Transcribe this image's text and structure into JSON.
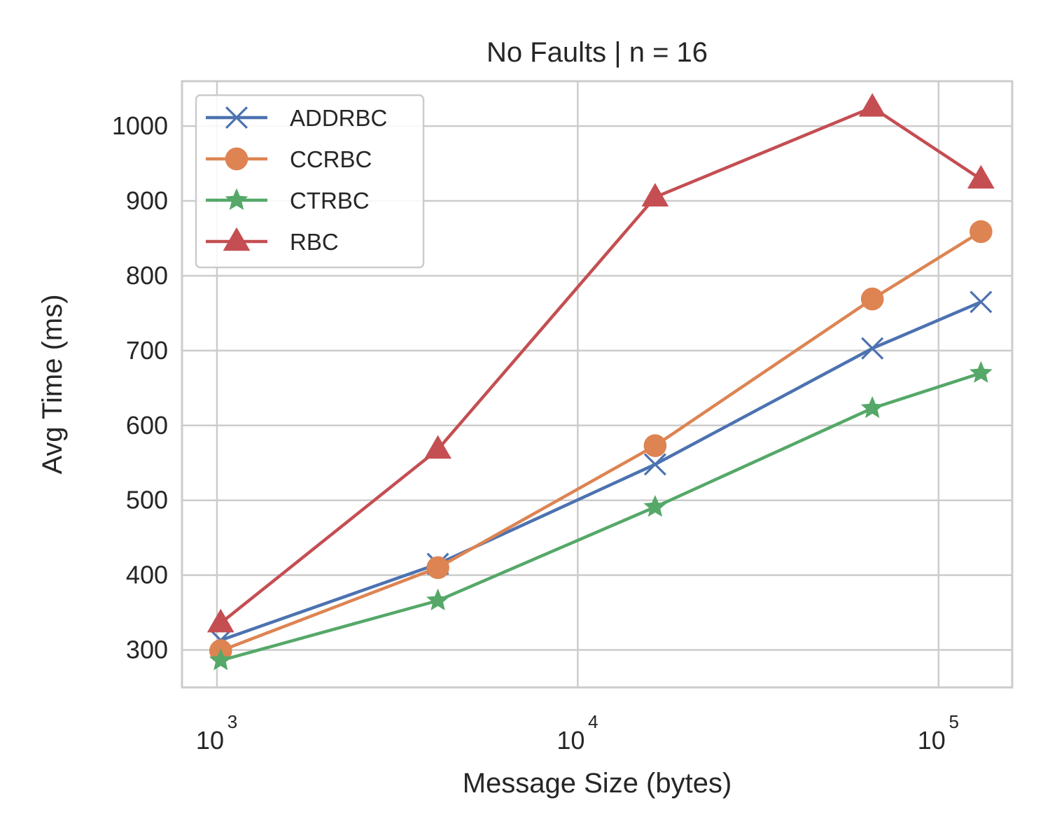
{
  "chart_data": {
    "type": "line",
    "title": "No Faults | n = 16",
    "xlabel": "Message Size (bytes)",
    "ylabel": "Avg Time (ms)",
    "x_scale": "log",
    "xlim": [
      800,
      160000
    ],
    "ylim": [
      250,
      1060
    ],
    "x": [
      1024,
      4096,
      16384,
      65536,
      131072
    ],
    "x_ticks": [
      {
        "value": 1000,
        "base": "10",
        "exp": "3"
      },
      {
        "value": 10000,
        "base": "10",
        "exp": "4"
      },
      {
        "value": 100000,
        "base": "10",
        "exp": "5"
      }
    ],
    "y_ticks": [
      300,
      400,
      500,
      600,
      700,
      800,
      900,
      1000
    ],
    "grid": true,
    "legend_position": "top-left",
    "series": [
      {
        "name": "ADDRBC",
        "color": "#4c72b0",
        "marker": "x",
        "values": [
          313,
          415,
          548,
          703,
          765
        ]
      },
      {
        "name": "CCRBC",
        "color": "#dd8452",
        "marker": "circle",
        "values": [
          299,
          410,
          573,
          769,
          859
        ]
      },
      {
        "name": "CTRBC",
        "color": "#55a868",
        "marker": "star",
        "values": [
          286,
          366,
          491,
          623,
          670
        ]
      },
      {
        "name": "RBC",
        "color": "#c44e52",
        "marker": "triangle",
        "values": [
          336,
          568,
          905,
          1025,
          929
        ]
      }
    ]
  }
}
